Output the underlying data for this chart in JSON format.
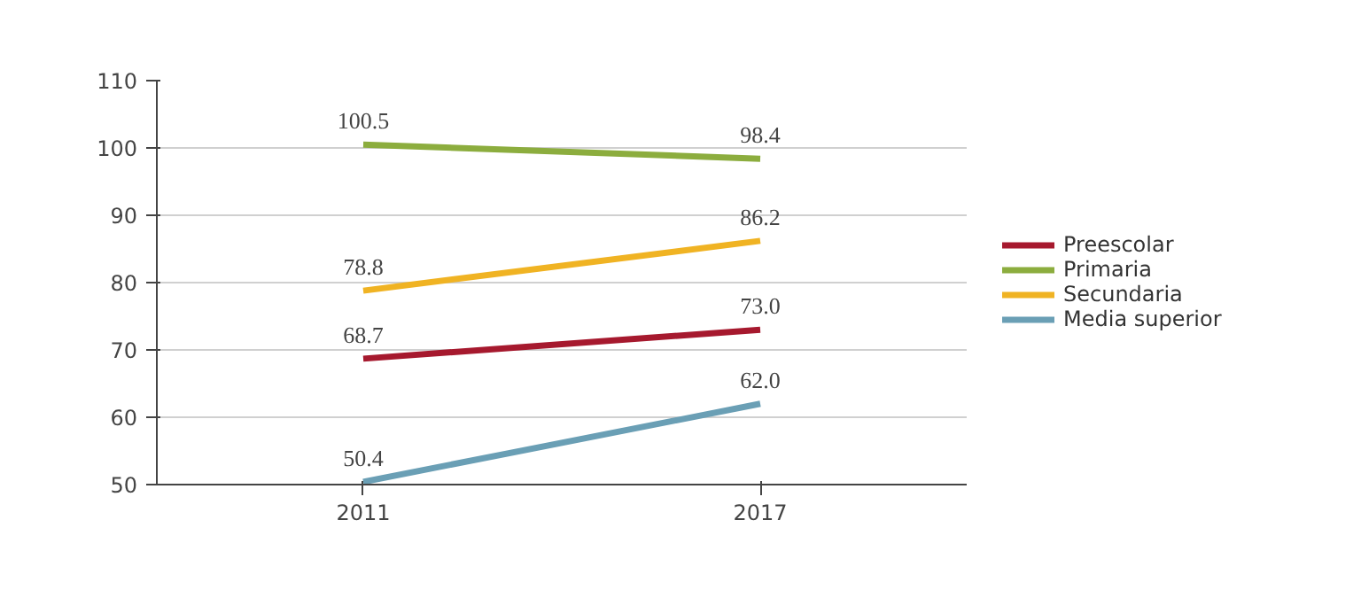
{
  "chart_data": {
    "type": "line",
    "categories": [
      "2011",
      "2017"
    ],
    "series": [
      {
        "name": "Preescolar",
        "color": "#a6192e",
        "values": [
          68.7,
          73.0
        ]
      },
      {
        "name": "Primaria",
        "color": "#8cad3e",
        "values": [
          100.5,
          98.4
        ]
      },
      {
        "name": "Secundaria",
        "color": "#f0b323",
        "values": [
          78.8,
          86.2
        ]
      },
      {
        "name": "Media superior",
        "color": "#6a9fb5",
        "values": [
          50.4,
          62.0
        ]
      }
    ],
    "value_labels": [
      [
        "68.7",
        "73.0"
      ],
      [
        "100.5",
        "98.4"
      ],
      [
        "78.8",
        "86.2"
      ],
      [
        "50.4",
        "62.0"
      ]
    ],
    "ylim": [
      50,
      110
    ],
    "yticks": [
      50,
      60,
      70,
      80,
      90,
      100,
      110
    ],
    "grid": "y",
    "legend": "right",
    "marker": "none",
    "line_style": "solid"
  }
}
